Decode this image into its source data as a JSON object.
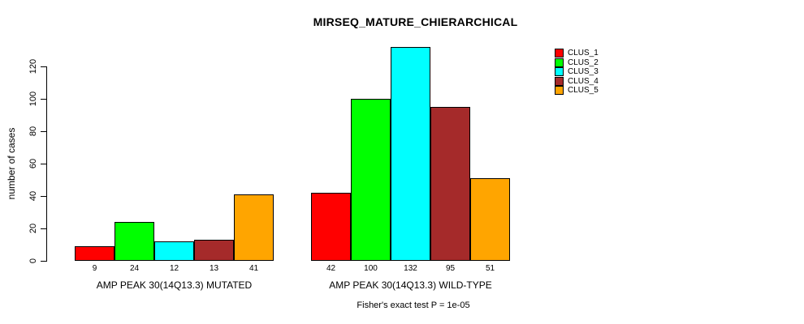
{
  "chart_data": {
    "type": "bar",
    "title": "MIRSEQ_MATURE_CHIERARCHICAL",
    "ylabel": "number of cases",
    "footnote": "Fisher's exact test P = 1e-05",
    "series": [
      "CLUS_1",
      "CLUS_2",
      "CLUS_3",
      "CLUS_4",
      "CLUS_5"
    ],
    "colors": [
      "#ff0000",
      "#00ff00",
      "#00ffff",
      "#a52a2a",
      "#ffa500"
    ],
    "groups": [
      {
        "label": "AMP PEAK 30(14Q13.3) MUTATED",
        "values": [
          9,
          24,
          12,
          13,
          41
        ]
      },
      {
        "label": "AMP PEAK 30(14Q13.3) WILD-TYPE",
        "values": [
          42,
          100,
          132,
          95,
          51
        ]
      }
    ],
    "yticks": [
      0,
      20,
      40,
      60,
      80,
      100,
      120
    ],
    "ylim": [
      0,
      132
    ],
    "grid": false,
    "legend_position": "right"
  },
  "legend": {
    "items": [
      {
        "label": "CLUS_1",
        "color": "#ff0000"
      },
      {
        "label": "CLUS_2",
        "color": "#00ff00"
      },
      {
        "label": "CLUS_3",
        "color": "#00ffff"
      },
      {
        "label": "CLUS_4",
        "color": "#a52a2a"
      },
      {
        "label": "CLUS_5",
        "color": "#ffa500"
      }
    ]
  }
}
